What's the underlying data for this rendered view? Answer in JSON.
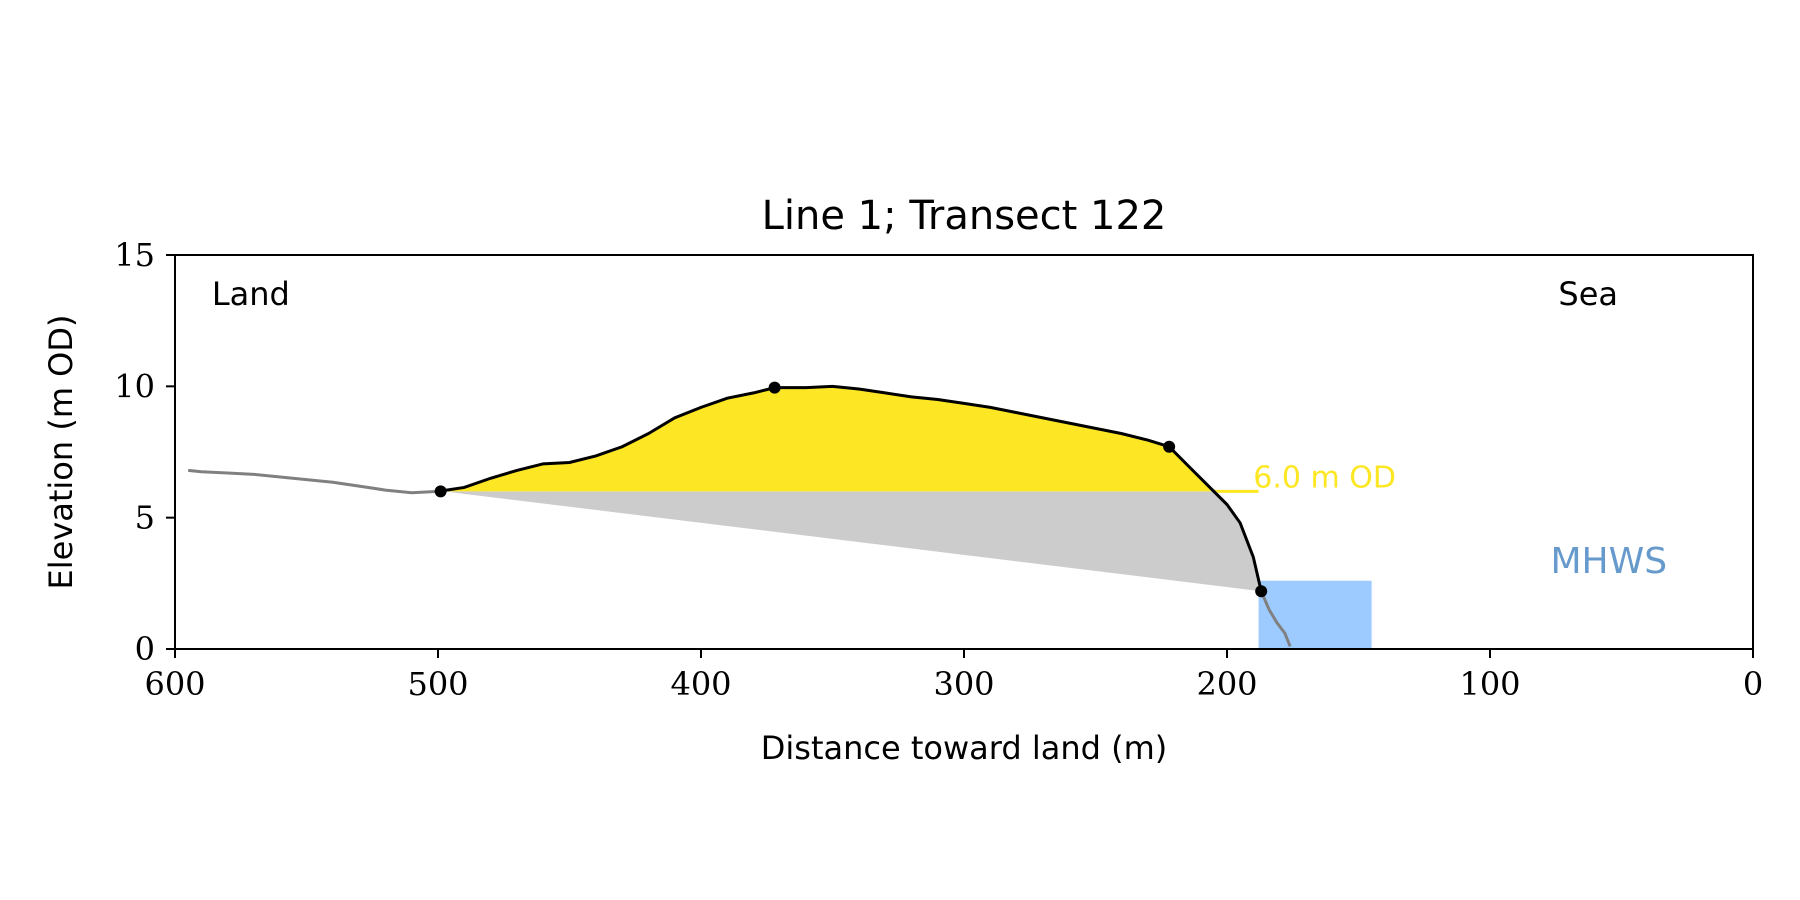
{
  "chart_data": {
    "type": "area",
    "title": "Line 1; Transect 122",
    "xlabel": "Distance toward land (m)",
    "ylabel": "Elevation (m OD)",
    "xlim": [
      600,
      0
    ],
    "ylim": [
      0,
      15
    ],
    "x_ticks": [
      600,
      500,
      400,
      300,
      200,
      100,
      0
    ],
    "y_ticks": [
      0,
      5,
      10,
      15
    ],
    "grid": false,
    "annotations": {
      "land_label": "Land",
      "sea_label": "Sea",
      "od_label": "6.0 m OD",
      "mhws_label": "MHWS"
    },
    "threshold_elevation": 6.0,
    "mhws": {
      "x_range": [
        188,
        145
      ],
      "elevation": 2.6
    },
    "colors": {
      "dune_fill": "#fde725",
      "base_fill": "#cccccc",
      "mhws_fill": "#9ecbff",
      "mhws_text": "#6699cc",
      "od_text": "#fde725",
      "profile_outer": "#808080",
      "profile_dune": "#000000"
    },
    "profile": [
      [
        595,
        6.8
      ],
      [
        590,
        6.75
      ],
      [
        580,
        6.7
      ],
      [
        570,
        6.65
      ],
      [
        560,
        6.55
      ],
      [
        550,
        6.45
      ],
      [
        540,
        6.35
      ],
      [
        530,
        6.2
      ],
      [
        520,
        6.05
      ],
      [
        510,
        5.95
      ],
      [
        500,
        6.0
      ],
      [
        490,
        6.15
      ],
      [
        480,
        6.5
      ],
      [
        470,
        6.8
      ],
      [
        460,
        7.05
      ],
      [
        450,
        7.1
      ],
      [
        440,
        7.35
      ],
      [
        430,
        7.7
      ],
      [
        420,
        8.2
      ],
      [
        410,
        8.8
      ],
      [
        400,
        9.2
      ],
      [
        390,
        9.55
      ],
      [
        380,
        9.75
      ],
      [
        372,
        9.95
      ],
      [
        360,
        9.95
      ],
      [
        350,
        10.0
      ],
      [
        340,
        9.9
      ],
      [
        330,
        9.75
      ],
      [
        320,
        9.6
      ],
      [
        310,
        9.5
      ],
      [
        300,
        9.35
      ],
      [
        290,
        9.2
      ],
      [
        280,
        9.0
      ],
      [
        270,
        8.8
      ],
      [
        260,
        8.6
      ],
      [
        250,
        8.4
      ],
      [
        240,
        8.2
      ],
      [
        230,
        7.95
      ],
      [
        222,
        7.7
      ],
      [
        215,
        7.0
      ],
      [
        207,
        6.2
      ],
      [
        200,
        5.5
      ],
      [
        195,
        4.8
      ],
      [
        190,
        3.5
      ],
      [
        187,
        2.2
      ],
      [
        184,
        1.5
      ],
      [
        181,
        1.0
      ],
      [
        178,
        0.6
      ],
      [
        176,
        0.1
      ]
    ],
    "dune_range": [
      499,
      187
    ],
    "key_points": [
      [
        499,
        6.0
      ],
      [
        372,
        9.95
      ],
      [
        222,
        7.7
      ],
      [
        187,
        2.2
      ]
    ]
  }
}
